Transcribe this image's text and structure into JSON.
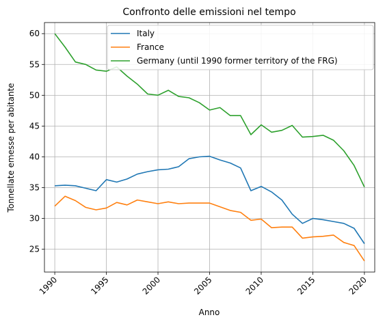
{
  "chart_data": {
    "type": "line",
    "title": "Confronto delle emissioni nel tempo",
    "xlabel": "Anno",
    "ylabel": "Tonnellate emesse per abitante",
    "x": [
      1990,
      1991,
      1992,
      1993,
      1994,
      1995,
      1996,
      1997,
      1998,
      1999,
      2000,
      2001,
      2002,
      2003,
      2004,
      2005,
      2006,
      2007,
      2008,
      2009,
      2010,
      2011,
      2012,
      2013,
      2014,
      2015,
      2016,
      2017,
      2018,
      2019,
      2020
    ],
    "xlim": [
      1989,
      2021
    ],
    "ylim": [
      21.3,
      61.8
    ],
    "xticks": [
      1990,
      1995,
      2000,
      2005,
      2010,
      2015,
      2020
    ],
    "yticks": [
      25,
      30,
      35,
      40,
      45,
      50,
      55,
      60
    ],
    "grid": true,
    "legend_position": "top-right",
    "series": [
      {
        "name": "Italy",
        "color": "#1f77b4",
        "values": [
          35.3,
          35.4,
          35.3,
          34.9,
          34.5,
          36.3,
          35.9,
          36.4,
          37.2,
          37.6,
          37.9,
          38.0,
          38.4,
          39.7,
          40.0,
          40.1,
          39.5,
          39.0,
          38.2,
          34.5,
          35.2,
          34.3,
          33.0,
          30.7,
          29.2,
          30.0,
          29.8,
          29.5,
          29.2,
          28.4,
          25.9
        ]
      },
      {
        "name": "France",
        "color": "#ff7f0e",
        "values": [
          32.0,
          33.6,
          32.9,
          31.8,
          31.4,
          31.7,
          32.6,
          32.2,
          33.0,
          32.7,
          32.4,
          32.7,
          32.4,
          32.5,
          32.5,
          32.5,
          31.9,
          31.3,
          31.0,
          29.7,
          29.9,
          28.5,
          28.6,
          28.6,
          26.8,
          27.0,
          27.1,
          27.3,
          26.1,
          25.6,
          23.1
        ]
      },
      {
        "name": "Germany (until 1990 former territory of the FRG)",
        "color": "#2ca02c",
        "values": [
          60.0,
          57.8,
          55.4,
          55.0,
          54.1,
          53.9,
          54.6,
          53.1,
          51.8,
          50.2,
          50.0,
          50.8,
          49.8,
          49.6,
          48.8,
          47.6,
          48.0,
          46.7,
          46.7,
          43.6,
          45.2,
          44.0,
          44.3,
          45.1,
          43.2,
          43.3,
          43.5,
          42.7,
          41.0,
          38.6,
          35.1
        ]
      }
    ]
  }
}
